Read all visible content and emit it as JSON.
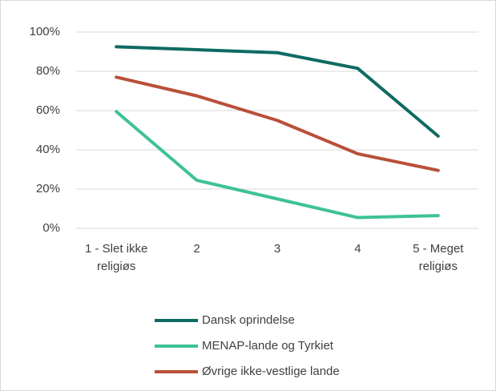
{
  "chart_data": {
    "type": "line",
    "categories": [
      "1 - Slet ikke religiøs",
      "2",
      "3",
      "4",
      "5 - Meget religiøs"
    ],
    "series": [
      {
        "name": "Dansk oprindelse",
        "color": "#0e6b62",
        "values": [
          92.5,
          91,
          89.5,
          81.5,
          47
        ]
      },
      {
        "name": "MENAP-lande og Tyrkiet",
        "color": "#3ec295",
        "values": [
          59.5,
          24.5,
          15,
          5.5,
          6.5
        ]
      },
      {
        "name": "Øvrige ikke-vestlige lande",
        "color": "#b9503a",
        "values": [
          77,
          67.5,
          55,
          38,
          29.5
        ]
      }
    ],
    "ylim": [
      0,
      100
    ],
    "yticks": [
      {
        "value": 0,
        "label": "0%"
      },
      {
        "value": 20,
        "label": "20%"
      },
      {
        "value": 40,
        "label": "40%"
      },
      {
        "value": 60,
        "label": "60%"
      },
      {
        "value": 80,
        "label": "80%"
      },
      {
        "value": 100,
        "label": "100%"
      }
    ],
    "grid": true,
    "legend": "bottom"
  }
}
